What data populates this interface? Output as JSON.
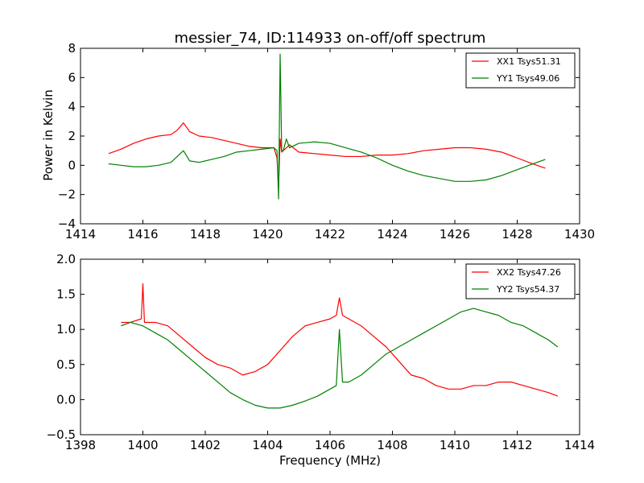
{
  "figure": {
    "title": "messier_74, ID:114933 on-off/off spectrum",
    "xlabel": "Frequency (MHz)",
    "ylabel": "Power in Kelvin"
  },
  "chart_data": [
    {
      "type": "line",
      "title": "messier_74, ID:114933 on-off/off spectrum",
      "xlabel": "",
      "ylabel": "Power in Kelvin",
      "xlim": [
        1414,
        1430
      ],
      "ylim": [
        -4,
        8
      ],
      "xticks": [
        1414,
        1416,
        1418,
        1420,
        1422,
        1424,
        1426,
        1428,
        1430
      ],
      "yticks": [
        -4,
        -2,
        0,
        2,
        4,
        6,
        8
      ],
      "legend": "top-right",
      "grid": false,
      "series": [
        {
          "name": "XX1 Tsys51.31",
          "color": "#ff0000",
          "x": [
            1414.9,
            1415.3,
            1415.7,
            1416.1,
            1416.5,
            1416.9,
            1417.1,
            1417.3,
            1417.5,
            1417.8,
            1418.2,
            1418.6,
            1419.0,
            1419.4,
            1419.8,
            1420.2,
            1420.3,
            1420.35,
            1420.4,
            1420.45,
            1420.5,
            1420.7,
            1421.0,
            1421.5,
            1422.0,
            1422.5,
            1423.0,
            1423.5,
            1424.0,
            1424.5,
            1425.0,
            1425.5,
            1426.0,
            1426.5,
            1427.0,
            1427.5,
            1428.0,
            1428.5,
            1428.9
          ],
          "y": [
            0.8,
            1.1,
            1.5,
            1.8,
            2.0,
            2.1,
            2.4,
            2.9,
            2.3,
            2.0,
            1.9,
            1.7,
            1.5,
            1.3,
            1.2,
            1.2,
            0.5,
            -1.5,
            1.8,
            0.9,
            1.0,
            1.4,
            0.9,
            0.8,
            0.7,
            0.6,
            0.6,
            0.7,
            0.7,
            0.8,
            1.0,
            1.1,
            1.2,
            1.2,
            1.1,
            0.9,
            0.5,
            0.1,
            -0.2
          ]
        },
        {
          "name": "YY1 Tsys49.06",
          "color": "#008000",
          "x": [
            1414.9,
            1415.3,
            1415.7,
            1416.1,
            1416.5,
            1416.9,
            1417.1,
            1417.3,
            1417.5,
            1417.8,
            1418.2,
            1418.6,
            1419.0,
            1419.4,
            1419.8,
            1420.2,
            1420.3,
            1420.35,
            1420.4,
            1420.45,
            1420.5,
            1420.6,
            1420.7,
            1421.0,
            1421.5,
            1422.0,
            1422.5,
            1423.0,
            1423.5,
            1424.0,
            1424.5,
            1425.0,
            1425.5,
            1426.0,
            1426.5,
            1427.0,
            1427.5,
            1428.0,
            1428.5,
            1428.9
          ],
          "y": [
            0.1,
            0.0,
            -0.1,
            -0.1,
            0.0,
            0.2,
            0.6,
            1.0,
            0.3,
            0.2,
            0.4,
            0.6,
            0.9,
            1.0,
            1.1,
            1.2,
            1.0,
            -2.3,
            7.6,
            1.0,
            1.0,
            1.8,
            1.2,
            1.5,
            1.6,
            1.5,
            1.2,
            0.9,
            0.5,
            0.0,
            -0.4,
            -0.7,
            -0.9,
            -1.1,
            -1.1,
            -1.0,
            -0.7,
            -0.3,
            0.1,
            0.4
          ]
        }
      ]
    },
    {
      "type": "line",
      "title": "",
      "xlabel": "Frequency (MHz)",
      "ylabel": "",
      "xlim": [
        1398,
        1414
      ],
      "ylim": [
        -0.5,
        2.0
      ],
      "xticks": [
        1398,
        1400,
        1402,
        1404,
        1406,
        1408,
        1410,
        1412,
        1414
      ],
      "yticks": [
        -0.5,
        0.0,
        0.5,
        1.0,
        1.5,
        2.0
      ],
      "yticklabels": [
        "−0.5",
        "0.0",
        "0.5",
        "1.0",
        "1.5",
        "2.0"
      ],
      "legend": "top-right",
      "grid": false,
      "series": [
        {
          "name": "XX2 Tsys47.26",
          "color": "#ff0000",
          "x": [
            1399.3,
            1399.6,
            1399.95,
            1400.0,
            1400.05,
            1400.4,
            1400.8,
            1401.2,
            1401.6,
            1402.0,
            1402.4,
            1402.8,
            1403.2,
            1403.6,
            1404.0,
            1404.4,
            1404.8,
            1405.2,
            1405.6,
            1406.0,
            1406.2,
            1406.3,
            1406.4,
            1406.6,
            1407.0,
            1407.4,
            1407.8,
            1408.2,
            1408.6,
            1409.0,
            1409.4,
            1409.8,
            1410.2,
            1410.6,
            1411.0,
            1411.4,
            1411.8,
            1412.2,
            1412.6,
            1413.0,
            1413.3
          ],
          "y": [
            1.1,
            1.1,
            1.15,
            1.65,
            1.1,
            1.1,
            1.05,
            0.9,
            0.75,
            0.6,
            0.5,
            0.45,
            0.35,
            0.4,
            0.5,
            0.7,
            0.9,
            1.05,
            1.1,
            1.15,
            1.2,
            1.45,
            1.2,
            1.15,
            1.05,
            0.9,
            0.75,
            0.55,
            0.35,
            0.3,
            0.2,
            0.15,
            0.15,
            0.2,
            0.2,
            0.25,
            0.25,
            0.2,
            0.15,
            0.1,
            0.05
          ]
        },
        {
          "name": "YY2 Tsys54.37",
          "color": "#008000",
          "x": [
            1399.3,
            1399.6,
            1400.0,
            1400.4,
            1400.8,
            1401.2,
            1401.6,
            1402.0,
            1402.4,
            1402.8,
            1403.2,
            1403.6,
            1404.0,
            1404.4,
            1404.8,
            1405.2,
            1405.6,
            1406.0,
            1406.2,
            1406.3,
            1406.4,
            1406.6,
            1407.0,
            1407.4,
            1407.8,
            1408.2,
            1408.6,
            1409.0,
            1409.4,
            1409.8,
            1410.2,
            1410.6,
            1411.0,
            1411.4,
            1411.8,
            1412.2,
            1412.6,
            1413.0,
            1413.3
          ],
          "y": [
            1.05,
            1.1,
            1.05,
            0.95,
            0.85,
            0.7,
            0.55,
            0.4,
            0.25,
            0.1,
            0.0,
            -0.08,
            -0.12,
            -0.12,
            -0.08,
            -0.02,
            0.05,
            0.15,
            0.2,
            1.0,
            0.25,
            0.25,
            0.35,
            0.5,
            0.65,
            0.75,
            0.85,
            0.95,
            1.05,
            1.15,
            1.25,
            1.3,
            1.25,
            1.2,
            1.1,
            1.05,
            0.95,
            0.85,
            0.75
          ]
        }
      ]
    }
  ]
}
